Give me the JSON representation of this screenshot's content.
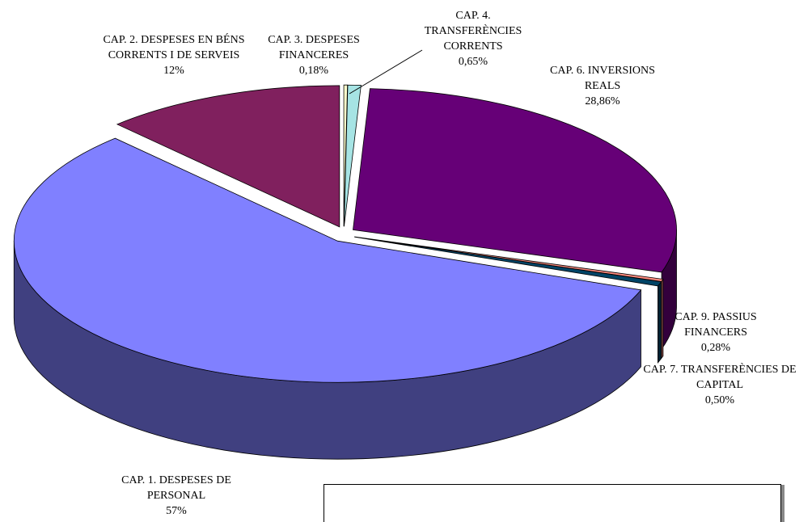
{
  "chart_data": {
    "type": "pie",
    "categories": [
      "CAP. 3. DESPESES FINANCERES",
      "CAP. 4. TRANSFERÈNCIES CORRENTS",
      "CAP. 6. INVERSIONS REALS",
      "CAP. 9. PASSIUS FINANCERS",
      "CAP. 7. TRANSFERÈNCIES DE CAPITAL",
      "CAP. 1. DESPESES DE PERSONAL",
      "CAP. 2. DESPESES EN BÉNS CORRENTS I DE SERVEIS"
    ],
    "values": [
      0.18,
      0.65,
      28.86,
      0.28,
      0.5,
      57,
      12
    ],
    "value_labels": [
      "0,18%",
      "0,65%",
      "28,86%",
      "0,28%",
      "0,50%",
      "57%",
      "12%"
    ],
    "colors": [
      "#ffffcc",
      "#a6e4e4",
      "#660077",
      "#ff8c80",
      "#004466",
      "#8080ff",
      "#80205e"
    ]
  }
}
